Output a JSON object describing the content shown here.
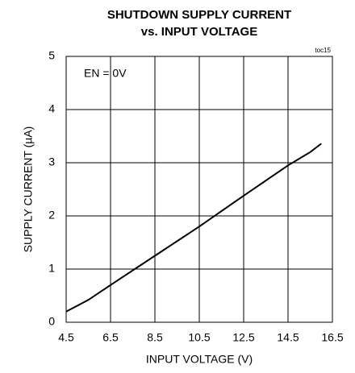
{
  "chart_data": {
    "type": "line",
    "title": [
      "SHUTDOWN SUPPLY CURRENT",
      "vs. INPUT VOLTAGE"
    ],
    "annotations": [
      "EN = 0V",
      "toc15"
    ],
    "x_label": "INPUT VOLTAGE (V)",
    "y_label": "SUPPLY CURRENT (µA)",
    "x": [
      4.5,
      5.5,
      6.5,
      8.5,
      10.5,
      12.5,
      14.5,
      15.5,
      16.0
    ],
    "series": [
      {
        "name": "EN = 0V",
        "color": "#000000",
        "values": [
          0.2,
          0.42,
          0.7,
          1.25,
          1.8,
          2.38,
          2.95,
          3.2,
          3.36
        ]
      }
    ],
    "xlim": [
      4.5,
      16.5
    ],
    "xticks": [
      4.5,
      6.5,
      8.5,
      10.5,
      12.5,
      14.5,
      16.5
    ],
    "ylim": [
      0,
      5
    ],
    "yticks": [
      0,
      1,
      2,
      3,
      4,
      5
    ],
    "grid": true
  }
}
